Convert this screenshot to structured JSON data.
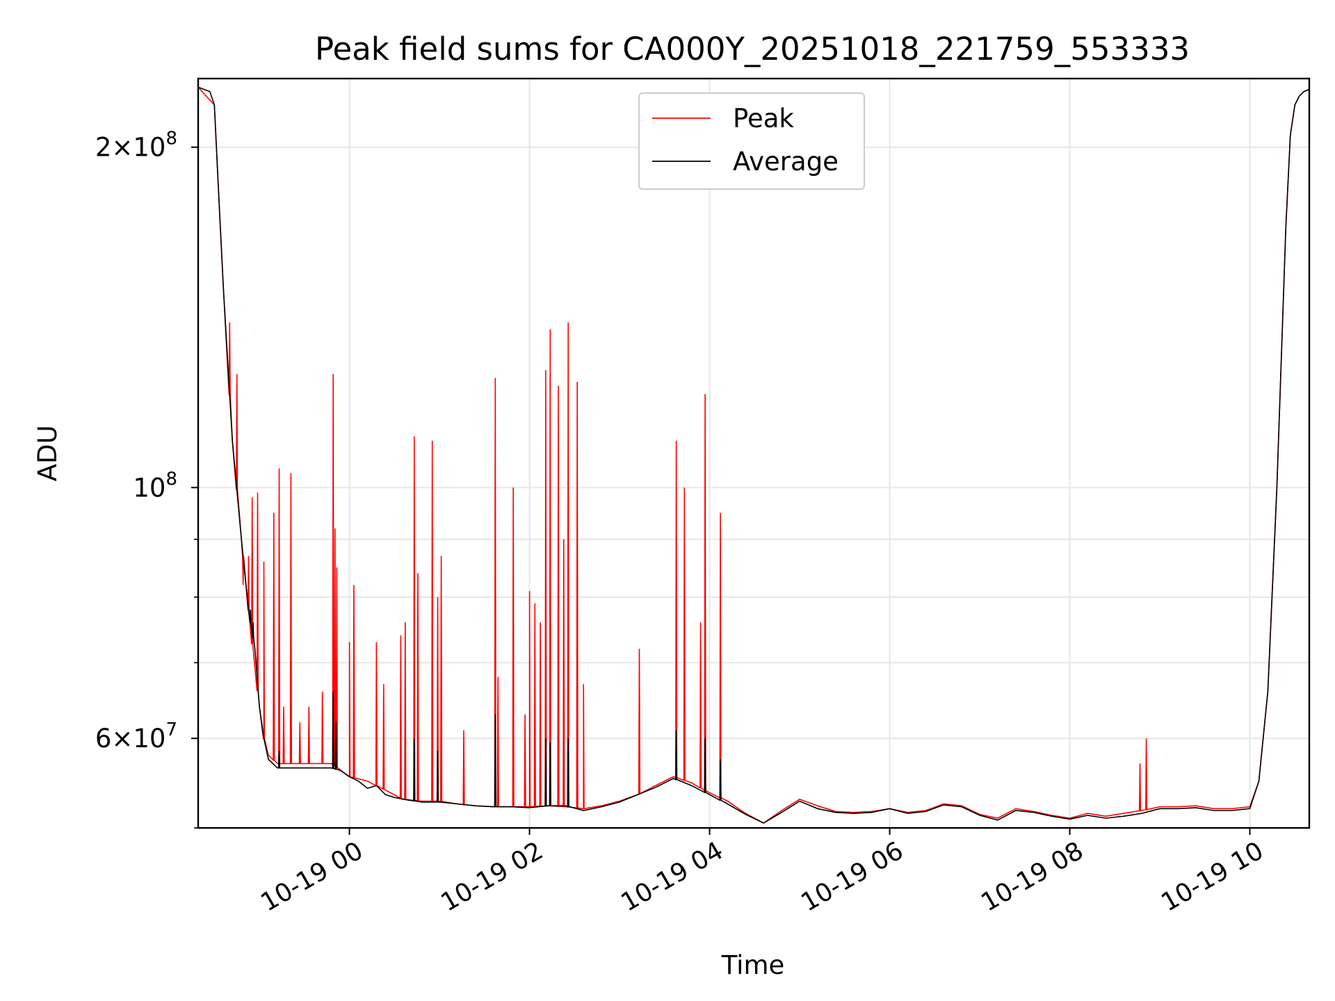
{
  "chart_data": {
    "type": "line",
    "title": "Peak field sums for CA000Y_20251018_221759_553333",
    "xlabel": "Time",
    "ylabel": "ADU",
    "yscale": "log",
    "xlim": [
      -1.68,
      10.66
    ],
    "ylim": [
      50000000,
      230000000
    ],
    "grid": true,
    "legend_position": "upper center",
    "x_ticks": [
      {
        "v": 0,
        "label": "10-19 00"
      },
      {
        "v": 2,
        "label": "10-19 02"
      },
      {
        "v": 4,
        "label": "10-19 04"
      },
      {
        "v": 6,
        "label": "10-19 06"
      },
      {
        "v": 8,
        "label": "10-19 08"
      },
      {
        "v": 10,
        "label": "10-19 10"
      }
    ],
    "y_major_ticks": [
      {
        "v": 60000000,
        "mant": "6",
        "exp": "7"
      },
      {
        "v": 100000000,
        "mant": "",
        "exp": "8"
      },
      {
        "v": 200000000,
        "mant": "2",
        "exp": "8"
      }
    ],
    "y_minor_ticks": [
      50000000,
      70000000,
      80000000,
      90000000
    ],
    "series": [
      {
        "name": "Peak",
        "color": "#ff0000",
        "baseline_x": [
          -1.68,
          -1.5,
          -1.4,
          -1.3,
          -1.2,
          -1.1,
          -1.0,
          -0.95,
          -0.9,
          -0.8,
          -0.7,
          -0.4,
          -0.2,
          0.0,
          0.2,
          0.4,
          0.6,
          0.8,
          1.0,
          1.2,
          1.4,
          1.6,
          1.8,
          2.0,
          2.2,
          2.4,
          2.6,
          2.8,
          3.0,
          3.2,
          3.4,
          3.6,
          3.8,
          4.0,
          4.2,
          4.4,
          4.6,
          4.8,
          5.0,
          5.2,
          5.4,
          5.6,
          5.8,
          6.0,
          6.2,
          6.4,
          6.6,
          6.8,
          7.0,
          7.2,
          7.4,
          7.6,
          7.8,
          8.0,
          8.2,
          8.4,
          8.6,
          8.8,
          9.0,
          9.2,
          9.4,
          9.6,
          9.8,
          10.0,
          10.1,
          10.2,
          10.3,
          10.4,
          10.45,
          10.5,
          10.55,
          10.6,
          10.66
        ],
        "baseline_y": [
          226000000,
          218000000,
          150000000,
          110000000,
          90000000,
          75000000,
          64000000,
          60000000,
          58000000,
          57000000,
          57000000,
          57000000,
          57000000,
          55500000,
          55000000,
          54000000,
          53000000,
          52800000,
          52800000,
          52500000,
          52300000,
          52200000,
          52200000,
          52200000,
          52300000,
          52200000,
          52000000,
          52300000,
          52800000,
          53500000,
          54500000,
          55500000,
          54800000,
          53700000,
          52800000,
          51500000,
          50500000,
          51800000,
          53000000,
          52300000,
          51700000,
          51600000,
          51700000,
          52000000,
          51600000,
          51800000,
          52500000,
          52300000,
          51400000,
          51000000,
          52000000,
          51700000,
          51300000,
          51000000,
          51500000,
          51200000,
          51500000,
          51800000,
          52200000,
          52200000,
          52300000,
          52000000,
          52000000,
          52200000,
          55000000,
          66000000,
          100000000,
          170000000,
          205000000,
          218000000,
          222000000,
          224000000,
          225000000
        ],
        "spikes": [
          {
            "x": -1.33,
            "y": 140000000
          },
          {
            "x": -1.25,
            "y": 126000000
          },
          {
            "x": -1.18,
            "y": 82000000
          },
          {
            "x": -1.12,
            "y": 87000000
          },
          {
            "x": -1.08,
            "y": 98000000
          },
          {
            "x": -1.02,
            "y": 99000000
          },
          {
            "x": -0.95,
            "y": 86000000
          },
          {
            "x": -0.84,
            "y": 95000000
          },
          {
            "x": -0.78,
            "y": 104000000
          },
          {
            "x": -0.73,
            "y": 64000000
          },
          {
            "x": -0.65,
            "y": 103000000
          },
          {
            "x": -0.55,
            "y": 62000000
          },
          {
            "x": -0.45,
            "y": 64000000
          },
          {
            "x": -0.3,
            "y": 66000000
          },
          {
            "x": -0.18,
            "y": 126000000
          },
          {
            "x": -0.16,
            "y": 92000000
          },
          {
            "x": -0.14,
            "y": 85000000
          },
          {
            "x": 0.0,
            "y": 73000000
          },
          {
            "x": 0.05,
            "y": 82000000
          },
          {
            "x": 0.3,
            "y": 73000000
          },
          {
            "x": 0.38,
            "y": 67000000
          },
          {
            "x": 0.57,
            "y": 74000000
          },
          {
            "x": 0.62,
            "y": 76000000
          },
          {
            "x": 0.72,
            "y": 111000000
          },
          {
            "x": 0.76,
            "y": 84000000
          },
          {
            "x": 0.92,
            "y": 110000000
          },
          {
            "x": 0.98,
            "y": 80000000
          },
          {
            "x": 1.02,
            "y": 87000000
          },
          {
            "x": 1.27,
            "y": 61000000
          },
          {
            "x": 1.62,
            "y": 125000000
          },
          {
            "x": 1.65,
            "y": 68000000
          },
          {
            "x": 1.82,
            "y": 100000000
          },
          {
            "x": 1.95,
            "y": 63000000
          },
          {
            "x": 2.0,
            "y": 81000000
          },
          {
            "x": 2.06,
            "y": 79000000
          },
          {
            "x": 2.12,
            "y": 76000000
          },
          {
            "x": 2.18,
            "y": 127000000
          },
          {
            "x": 2.23,
            "y": 138000000
          },
          {
            "x": 2.32,
            "y": 123000000
          },
          {
            "x": 2.38,
            "y": 90000000
          },
          {
            "x": 2.43,
            "y": 140000000
          },
          {
            "x": 2.53,
            "y": 124000000
          },
          {
            "x": 2.6,
            "y": 67000000
          },
          {
            "x": 3.22,
            "y": 72000000
          },
          {
            "x": 3.63,
            "y": 110000000
          },
          {
            "x": 3.72,
            "y": 100000000
          },
          {
            "x": 3.9,
            "y": 76000000
          },
          {
            "x": 3.95,
            "y": 121000000
          },
          {
            "x": 4.12,
            "y": 95000000
          },
          {
            "x": 8.85,
            "y": 60000000
          },
          {
            "x": 8.78,
            "y": 57000000
          }
        ]
      },
      {
        "name": "Average",
        "color": "#000000",
        "x": [
          -1.68,
          -1.55,
          -1.5,
          -1.45,
          -1.4,
          -1.3,
          -1.2,
          -1.1,
          -1.05,
          -1.0,
          -0.95,
          -0.9,
          -0.8,
          -0.7,
          -0.6,
          -0.4,
          -0.2,
          -0.1,
          0.0,
          0.1,
          0.2,
          0.3,
          0.4,
          0.5,
          0.6,
          0.8,
          1.0,
          1.2,
          1.4,
          1.6,
          1.8,
          2.0,
          2.2,
          2.4,
          2.6,
          2.8,
          3.0,
          3.2,
          3.4,
          3.6,
          3.8,
          4.0,
          4.2,
          4.4,
          4.6,
          4.8,
          5.0,
          5.2,
          5.4,
          5.6,
          5.8,
          6.0,
          6.2,
          6.4,
          6.6,
          6.8,
          7.0,
          7.2,
          7.4,
          7.6,
          7.8,
          8.0,
          8.2,
          8.4,
          8.6,
          8.8,
          9.0,
          9.2,
          9.4,
          9.6,
          9.8,
          10.0,
          10.1,
          10.2,
          10.3,
          10.4,
          10.45,
          10.5,
          10.55,
          10.6,
          10.66
        ],
        "y": [
          226000000,
          224000000,
          218000000,
          180000000,
          150000000,
          110000000,
          90000000,
          76000000,
          72000000,
          64000000,
          60000000,
          57500000,
          56500000,
          56500000,
          56500000,
          56500000,
          56500000,
          56200000,
          55500000,
          55000000,
          54200000,
          54500000,
          53500000,
          53200000,
          53000000,
          52700000,
          52700000,
          52500000,
          52300000,
          52200000,
          52200000,
          52100000,
          52300000,
          52300000,
          51800000,
          52200000,
          52700000,
          53500000,
          54300000,
          55300000,
          54500000,
          53500000,
          52500000,
          51400000,
          50500000,
          51600000,
          52800000,
          52000000,
          51600000,
          51500000,
          51600000,
          52000000,
          51500000,
          51700000,
          52400000,
          52200000,
          51300000,
          50800000,
          51800000,
          51600000,
          51200000,
          50900000,
          51300000,
          51000000,
          51200000,
          51500000,
          52000000,
          52000000,
          52100000,
          51800000,
          51800000,
          52000000,
          55000000,
          66000000,
          100000000,
          170000000,
          205000000,
          218000000,
          222000000,
          224000000,
          225000000
        ],
        "spikes": [
          {
            "x": -1.1,
            "y": 78000000
          },
          {
            "x": -1.07,
            "y": 76000000
          },
          {
            "x": -0.78,
            "y": 58500000
          },
          {
            "x": -0.18,
            "y": 66000000
          },
          {
            "x": -0.15,
            "y": 62000000
          },
          {
            "x": 0.72,
            "y": 60000000
          },
          {
            "x": 0.98,
            "y": 58500000
          },
          {
            "x": 1.62,
            "y": 63000000
          },
          {
            "x": 2.18,
            "y": 60000000
          },
          {
            "x": 2.23,
            "y": 59500000
          },
          {
            "x": 2.43,
            "y": 60000000
          },
          {
            "x": 3.63,
            "y": 61000000
          },
          {
            "x": 3.95,
            "y": 60000000
          },
          {
            "x": 4.12,
            "y": 57500000
          }
        ]
      }
    ]
  }
}
